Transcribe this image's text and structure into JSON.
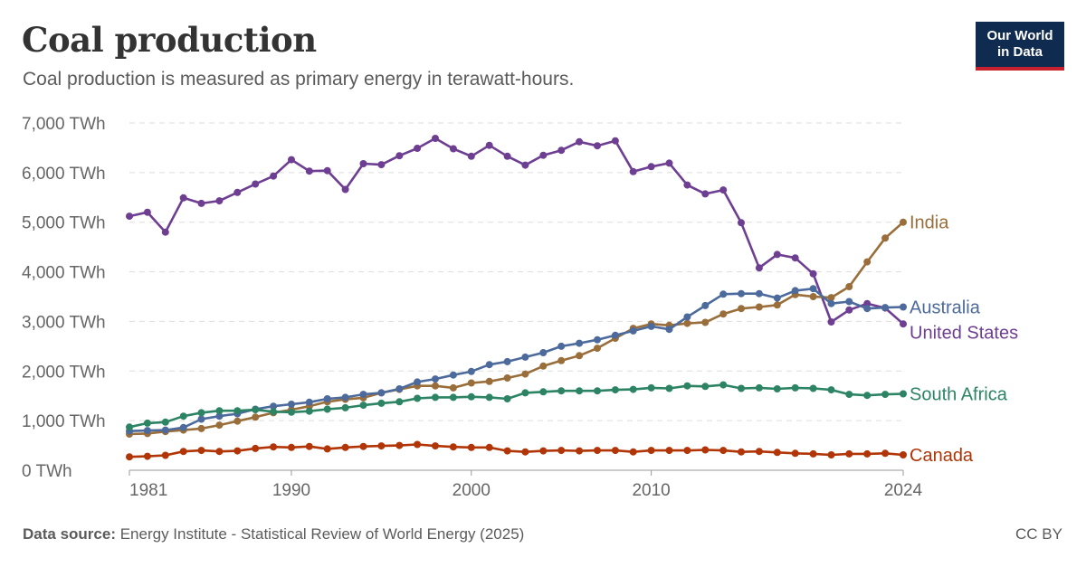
{
  "header": {
    "title": "Coal production",
    "subtitle": "Coal production is measured as primary energy in terawatt-hours."
  },
  "logo": {
    "line1": "Our World",
    "line2": "in Data"
  },
  "footer": {
    "source_label": "Data source:",
    "source_text": "Energy Institute - Statistical Review of World Energy (2025)",
    "license": "CC BY"
  },
  "chart_data": {
    "type": "line",
    "title": "Coal production",
    "subtitle": "Coal production is measured as primary energy in terawatt-hours.",
    "x_start": 1981,
    "x_end": 2024,
    "xlim": [
      1981,
      2024
    ],
    "ylim": [
      0,
      7000
    ],
    "y_ticks": [
      0,
      1000,
      2000,
      3000,
      4000,
      5000,
      6000,
      7000
    ],
    "y_tick_labels": [
      "0 TWh",
      "1,000 TWh",
      "2,000 TWh",
      "3,000 TWh",
      "4,000 TWh",
      "5,000 TWh",
      "6,000 TWh",
      "7,000 TWh"
    ],
    "x_ticks": [
      1981,
      1990,
      2000,
      2010,
      2024
    ],
    "x_tick_labels": [
      "1981",
      "1990",
      "2000",
      "2010",
      "2024"
    ],
    "grid": "horizontal dashed",
    "legend": "inline labels at line ends (right)",
    "series": [
      {
        "name": "United States",
        "color": "#6d3e91",
        "values": [
          5120,
          5200,
          4800,
          5490,
          5380,
          5430,
          5600,
          5770,
          5930,
          6260,
          6030,
          6040,
          5660,
          6180,
          6160,
          6340,
          6490,
          6690,
          6480,
          6330,
          6550,
          6330,
          6150,
          6350,
          6450,
          6620,
          6540,
          6640,
          6020,
          6120,
          6190,
          5750,
          5570,
          5650,
          4990,
          4080,
          4350,
          4280,
          3960,
          2990,
          3230,
          3360,
          3270,
          2950
        ]
      },
      {
        "name": "India",
        "color": "#9a6e3a",
        "values": [
          730,
          740,
          780,
          810,
          840,
          910,
          990,
          1070,
          1160,
          1220,
          1290,
          1380,
          1430,
          1460,
          1560,
          1630,
          1700,
          1700,
          1660,
          1760,
          1790,
          1860,
          1940,
          2100,
          2210,
          2310,
          2460,
          2660,
          2860,
          2950,
          2920,
          2960,
          2980,
          3150,
          3260,
          3290,
          3330,
          3540,
          3500,
          3480,
          3700,
          4200,
          4680,
          5000
        ]
      },
      {
        "name": "Australia",
        "color": "#4c6a9c",
        "values": [
          790,
          800,
          810,
          860,
          1030,
          1090,
          1140,
          1230,
          1290,
          1330,
          1370,
          1440,
          1470,
          1530,
          1560,
          1640,
          1780,
          1840,
          1920,
          1990,
          2130,
          2190,
          2280,
          2370,
          2500,
          2560,
          2630,
          2720,
          2810,
          2900,
          2840,
          3090,
          3320,
          3550,
          3560,
          3560,
          3470,
          3620,
          3660,
          3360,
          3400,
          3260,
          3280,
          3290
        ]
      },
      {
        "name": "South Africa",
        "color": "#2c8465",
        "values": [
          870,
          950,
          970,
          1090,
          1160,
          1200,
          1200,
          1220,
          1180,
          1170,
          1190,
          1230,
          1260,
          1310,
          1350,
          1380,
          1450,
          1470,
          1470,
          1480,
          1470,
          1440,
          1560,
          1580,
          1600,
          1600,
          1600,
          1620,
          1630,
          1660,
          1650,
          1700,
          1690,
          1720,
          1650,
          1660,
          1640,
          1660,
          1650,
          1620,
          1530,
          1510,
          1530,
          1540
        ]
      },
      {
        "name": "Canada",
        "color": "#b13507",
        "values": [
          270,
          280,
          300,
          380,
          400,
          380,
          390,
          440,
          470,
          460,
          480,
          430,
          460,
          480,
          490,
          500,
          520,
          490,
          470,
          460,
          460,
          390,
          370,
          390,
          400,
          390,
          400,
          400,
          370,
          400,
          400,
          400,
          410,
          400,
          370,
          380,
          360,
          340,
          330,
          310,
          330,
          330,
          340,
          310
        ]
      }
    ]
  }
}
